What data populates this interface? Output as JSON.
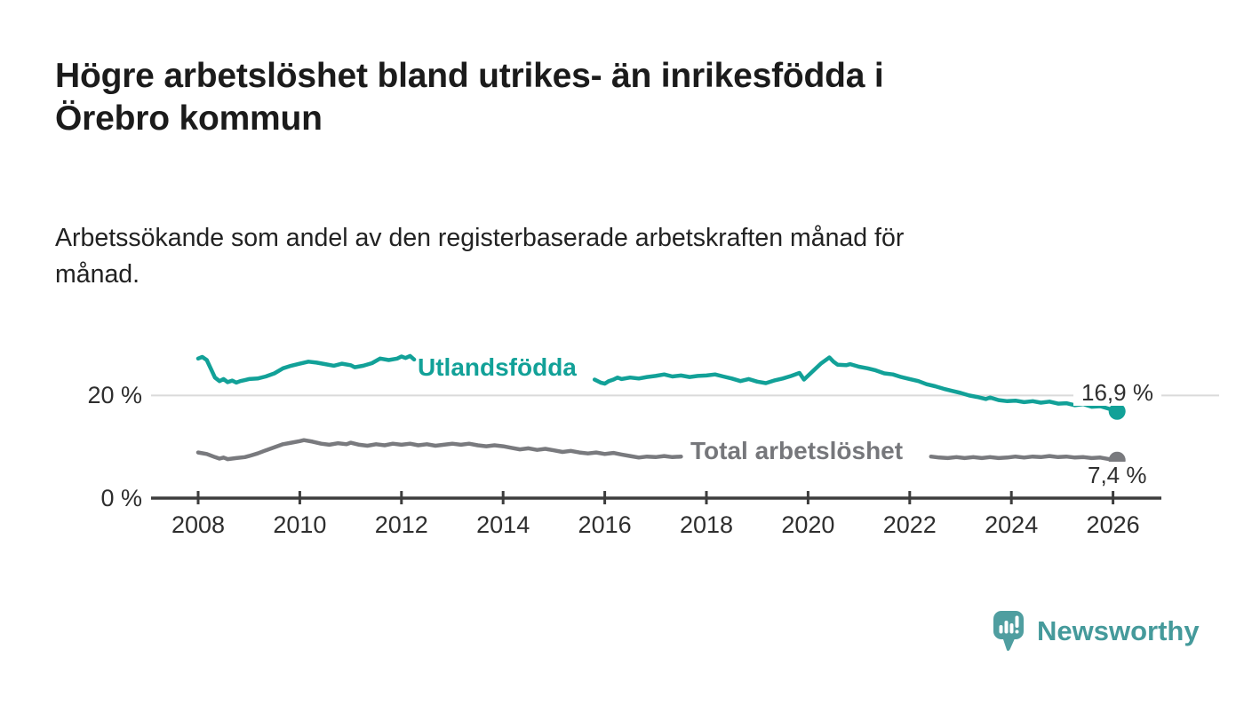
{
  "chart_data": {
    "type": "line",
    "title": "Högre arbetslöshet bland utrikes- än inrikesfödda i\nÖrebro kommun",
    "subtitle": "Arbetssökande som andel av den registerbaserade arbetskraften månad för\nmånad.",
    "xlabel": "",
    "ylabel": "",
    "xlim": [
      2007.07,
      2026.95
    ],
    "ylim": [
      0,
      34.6
    ],
    "grid": "single light horizontal gridline at 20 %, dark baseline axis at 0 %",
    "legend_position": "inline labels on lines",
    "y_ticks": [
      {
        "value": 20,
        "label": "20 %"
      },
      {
        "value": 0,
        "label": "0 %"
      }
    ],
    "y_gridlines": [
      20
    ],
    "x_ticks": [
      {
        "year": 2008,
        "label": "2008"
      },
      {
        "year": 2010,
        "label": "2010"
      },
      {
        "year": 2012,
        "label": "2012"
      },
      {
        "year": 2014,
        "label": "2014"
      },
      {
        "year": 2016,
        "label": "2016"
      },
      {
        "year": 2018,
        "label": "2018"
      },
      {
        "year": 2020,
        "label": "2020"
      },
      {
        "year": 2022,
        "label": "2022"
      },
      {
        "year": 2024,
        "label": "2024"
      },
      {
        "year": 2026,
        "label": "2026"
      }
    ],
    "series": [
      {
        "name": "Utlandsfödda",
        "color": "#12a198",
        "unit": "%",
        "end_label": "16,9 %",
        "end_value": 16.9,
        "segments": [
          [
            [
              2008.0,
              27.2
            ],
            [
              2008.08,
              27.5
            ],
            [
              2008.17,
              26.9
            ],
            [
              2008.25,
              25.2
            ],
            [
              2008.33,
              23.5
            ],
            [
              2008.42,
              22.8
            ],
            [
              2008.5,
              23.2
            ],
            [
              2008.58,
              22.6
            ],
            [
              2008.67,
              22.9
            ],
            [
              2008.75,
              22.5
            ],
            [
              2008.83,
              22.8
            ],
            [
              2008.92,
              23.0
            ],
            [
              2009.0,
              23.2
            ],
            [
              2009.17,
              23.3
            ],
            [
              2009.33,
              23.7
            ],
            [
              2009.5,
              24.3
            ],
            [
              2009.67,
              25.3
            ],
            [
              2009.83,
              25.8
            ],
            [
              2010.0,
              26.2
            ],
            [
              2010.17,
              26.6
            ],
            [
              2010.33,
              26.4
            ],
            [
              2010.5,
              26.1
            ],
            [
              2010.67,
              25.8
            ],
            [
              2010.83,
              26.2
            ],
            [
              2011.0,
              25.9
            ],
            [
              2011.08,
              25.5
            ],
            [
              2011.25,
              25.8
            ],
            [
              2011.42,
              26.3
            ],
            [
              2011.58,
              27.2
            ],
            [
              2011.75,
              26.9
            ],
            [
              2011.92,
              27.2
            ],
            [
              2012.0,
              27.6
            ],
            [
              2012.08,
              27.3
            ],
            [
              2012.17,
              27.7
            ],
            [
              2012.25,
              27.0
            ]
          ],
          [
            [
              2015.8,
              23.1
            ],
            [
              2015.92,
              22.5
            ],
            [
              2016.0,
              22.3
            ],
            [
              2016.08,
              22.8
            ],
            [
              2016.17,
              23.1
            ],
            [
              2016.25,
              23.5
            ],
            [
              2016.33,
              23.2
            ],
            [
              2016.5,
              23.5
            ],
            [
              2016.67,
              23.3
            ],
            [
              2016.83,
              23.6
            ],
            [
              2017.0,
              23.8
            ],
            [
              2017.17,
              24.1
            ],
            [
              2017.33,
              23.7
            ],
            [
              2017.5,
              23.9
            ],
            [
              2017.67,
              23.6
            ],
            [
              2017.83,
              23.8
            ],
            [
              2018.0,
              23.9
            ],
            [
              2018.17,
              24.1
            ],
            [
              2018.33,
              23.7
            ],
            [
              2018.5,
              23.3
            ],
            [
              2018.67,
              22.8
            ],
            [
              2018.83,
              23.2
            ],
            [
              2019.0,
              22.7
            ],
            [
              2019.17,
              22.4
            ],
            [
              2019.33,
              22.9
            ],
            [
              2019.5,
              23.3
            ],
            [
              2019.67,
              23.8
            ],
            [
              2019.83,
              24.4
            ],
            [
              2019.92,
              23.1
            ],
            [
              2020.08,
              24.6
            ],
            [
              2020.25,
              26.2
            ],
            [
              2020.42,
              27.4
            ],
            [
              2020.5,
              26.6
            ],
            [
              2020.58,
              26.0
            ],
            [
              2020.75,
              25.9
            ],
            [
              2020.83,
              26.1
            ],
            [
              2021.0,
              25.6
            ],
            [
              2021.17,
              25.3
            ],
            [
              2021.33,
              24.9
            ],
            [
              2021.5,
              24.3
            ],
            [
              2021.67,
              24.1
            ],
            [
              2021.83,
              23.6
            ],
            [
              2022.0,
              23.2
            ],
            [
              2022.17,
              22.8
            ],
            [
              2022.33,
              22.2
            ],
            [
              2022.5,
              21.8
            ],
            [
              2022.67,
              21.3
            ],
            [
              2022.83,
              20.9
            ],
            [
              2023.0,
              20.5
            ],
            [
              2023.17,
              20.0
            ],
            [
              2023.33,
              19.7
            ],
            [
              2023.5,
              19.3
            ],
            [
              2023.58,
              19.6
            ],
            [
              2023.75,
              19.1
            ],
            [
              2023.92,
              18.9
            ],
            [
              2024.08,
              19.0
            ],
            [
              2024.25,
              18.7
            ],
            [
              2024.42,
              18.9
            ],
            [
              2024.58,
              18.6
            ],
            [
              2024.75,
              18.8
            ],
            [
              2024.92,
              18.4
            ],
            [
              2025.08,
              18.5
            ],
            [
              2025.25,
              18.1
            ],
            [
              2025.42,
              18.3
            ],
            [
              2025.58,
              17.8
            ],
            [
              2025.75,
              17.9
            ],
            [
              2025.92,
              17.4
            ],
            [
              2026.08,
              16.9
            ]
          ]
        ]
      },
      {
        "name": "Total arbetslöshet",
        "color": "#797a7e",
        "unit": "%",
        "end_label": "7,4 %",
        "end_value": 7.4,
        "segments": [
          [
            [
              2008.0,
              8.9
            ],
            [
              2008.17,
              8.6
            ],
            [
              2008.33,
              8.0
            ],
            [
              2008.42,
              7.7
            ],
            [
              2008.5,
              7.9
            ],
            [
              2008.58,
              7.6
            ],
            [
              2008.75,
              7.8
            ],
            [
              2008.92,
              8.0
            ],
            [
              2009.0,
              8.2
            ],
            [
              2009.17,
              8.7
            ],
            [
              2009.33,
              9.3
            ],
            [
              2009.5,
              9.9
            ],
            [
              2009.67,
              10.5
            ],
            [
              2009.83,
              10.8
            ],
            [
              2010.0,
              11.1
            ],
            [
              2010.08,
              11.3
            ],
            [
              2010.25,
              11.0
            ],
            [
              2010.42,
              10.6
            ],
            [
              2010.58,
              10.4
            ],
            [
              2010.75,
              10.7
            ],
            [
              2010.92,
              10.5
            ],
            [
              2011.0,
              10.8
            ],
            [
              2011.17,
              10.4
            ],
            [
              2011.33,
              10.2
            ],
            [
              2011.5,
              10.5
            ],
            [
              2011.67,
              10.3
            ],
            [
              2011.83,
              10.6
            ],
            [
              2012.0,
              10.4
            ],
            [
              2012.17,
              10.6
            ],
            [
              2012.33,
              10.3
            ],
            [
              2012.5,
              10.5
            ],
            [
              2012.67,
              10.2
            ],
            [
              2012.83,
              10.4
            ],
            [
              2013.0,
              10.6
            ],
            [
              2013.17,
              10.4
            ],
            [
              2013.33,
              10.6
            ],
            [
              2013.5,
              10.3
            ],
            [
              2013.67,
              10.1
            ],
            [
              2013.83,
              10.3
            ],
            [
              2014.0,
              10.1
            ],
            [
              2014.17,
              9.8
            ],
            [
              2014.33,
              9.5
            ],
            [
              2014.5,
              9.7
            ],
            [
              2014.67,
              9.4
            ],
            [
              2014.83,
              9.6
            ],
            [
              2015.0,
              9.3
            ],
            [
              2015.17,
              9.0
            ],
            [
              2015.33,
              9.2
            ],
            [
              2015.5,
              8.9
            ],
            [
              2015.67,
              8.7
            ],
            [
              2015.83,
              8.9
            ],
            [
              2016.0,
              8.6
            ],
            [
              2016.17,
              8.8
            ],
            [
              2016.33,
              8.5
            ],
            [
              2016.5,
              8.2
            ],
            [
              2016.67,
              7.9
            ],
            [
              2016.83,
              8.1
            ],
            [
              2017.0,
              8.0
            ],
            [
              2017.17,
              8.2
            ],
            [
              2017.33,
              8.0
            ],
            [
              2017.5,
              8.1
            ]
          ],
          [
            [
              2022.42,
              8.1
            ],
            [
              2022.58,
              7.9
            ],
            [
              2022.75,
              7.8
            ],
            [
              2022.92,
              8.0
            ],
            [
              2023.08,
              7.8
            ],
            [
              2023.25,
              8.0
            ],
            [
              2023.42,
              7.8
            ],
            [
              2023.58,
              8.0
            ],
            [
              2023.75,
              7.8
            ],
            [
              2023.92,
              7.9
            ],
            [
              2024.08,
              8.1
            ],
            [
              2024.25,
              7.9
            ],
            [
              2024.42,
              8.1
            ],
            [
              2024.58,
              8.0
            ],
            [
              2024.75,
              8.2
            ],
            [
              2024.92,
              8.0
            ],
            [
              2025.08,
              8.1
            ],
            [
              2025.25,
              7.9
            ],
            [
              2025.42,
              8.0
            ],
            [
              2025.58,
              7.8
            ],
            [
              2025.75,
              7.9
            ],
            [
              2025.92,
              7.6
            ],
            [
              2026.08,
              7.4
            ]
          ]
        ]
      }
    ]
  },
  "footer": {
    "brand": "Newsworthy"
  },
  "colors": {
    "accent_teal": "#12a198",
    "logo_teal": "#4f9ea0",
    "series_gray": "#797a7e",
    "axis": "#3d3d3d",
    "gridline": "#dadada"
  }
}
